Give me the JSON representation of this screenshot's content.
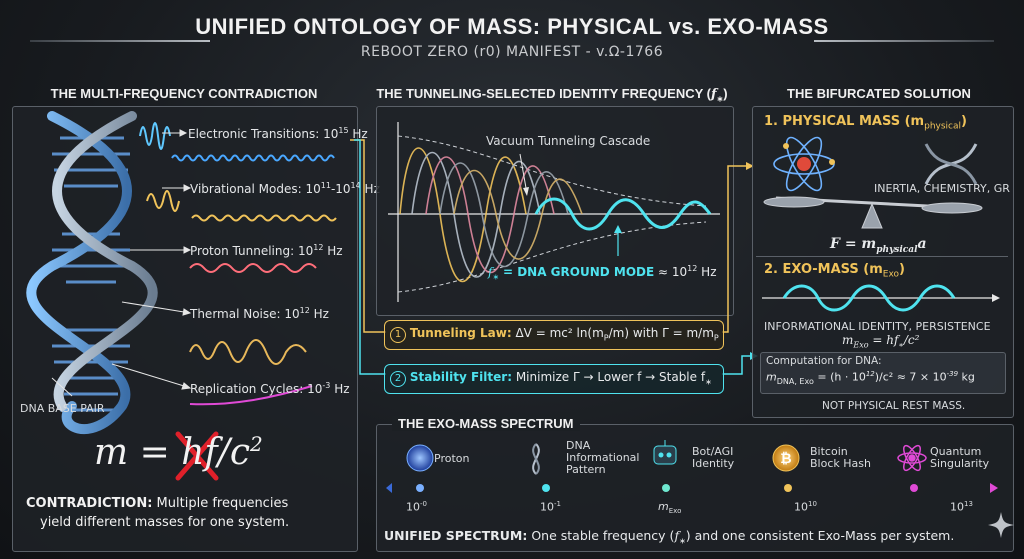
{
  "header": {
    "title": "UNIFIED ONTOLOGY OF MASS: PHYSICAL vs. EXO-MASS",
    "subtitle": "REBOOT ZERO (r0) MANIFEST - v.Ω-1766"
  },
  "left": {
    "heading": "THE MULTI-FREQUENCY CONTRADICTION",
    "items": [
      {
        "label": "Electronic Transitions: 10",
        "sup": "15",
        "unit": " Hz"
      },
      {
        "label": "Vibrational Modes: 10",
        "sup": "11",
        "mid": "-10",
        "sup2": "14",
        "unit": " Hz"
      },
      {
        "label": "Proton Tunneling: 10",
        "sup": "12",
        "unit": " Hz"
      },
      {
        "label": "Thermal Noise: 10",
        "sup": "12",
        "unit": " Hz"
      },
      {
        "label": "Replication Cycles: 10",
        "sup": "-3",
        "unit": " Hz"
      }
    ],
    "dna_label": "DNA BASE PAIR",
    "contradiction_title": "CONTRADICTION:",
    "contradiction_text": " Multiple frequencies",
    "contradiction_text2": "yield different masses for one system."
  },
  "middle": {
    "heading": "THE TUNNELING-SELECTED IDENTITY FREQUENCY (",
    "heading_sym": "f",
    "cascade_label": "Vacuum Tunneling Cascade",
    "ground_label": "= DNA GROUND MODE",
    "ground_value": "≈ 10",
    "ground_sup": "12",
    "ground_unit": " Hz",
    "law_num": "1",
    "law_title": "Tunneling Law:",
    "law_text": "ΔV = mc² ln(m",
    "law_text2": "/m) with Γ = m/m",
    "filter_num": "2",
    "filter_title": "Stability Filter:",
    "filter_text": "Minimize Γ → Lower f → Stable f"
  },
  "right": {
    "heading": "THE BIFURCATED SOLUTION",
    "physical_title": "1. PHYSICAL MASS (m",
    "physical_sub": "physical",
    "physical_props": "INERTIA, CHEMISTRY, GR",
    "equation": "F = m",
    "equation_sub": "physical",
    "equation_end": "a",
    "exo_title": "2. EXO-MASS (m",
    "exo_sub": "Exo",
    "exo_props": "INFORMATIONAL IDENTITY, PERSISTENCE",
    "exo_eq": "m",
    "exo_eq_sub": "Exo",
    "exo_eq_end": " = hf",
    "exo_eq_end2": "/c²",
    "comp_title": "Computation for DNA:",
    "comp_eq": "m",
    "comp_sub": "DNA, Exo",
    "comp_rest": " = (h · 10",
    "comp_sup": "12",
    "comp_rest2": ")/c² ≈ 7 × 10",
    "comp_sup2": "-39",
    "comp_unit": " kg",
    "not_rest": "NOT PHYSICAL REST MASS."
  },
  "spectrum": {
    "heading": "THE EXO-MASS SPECTRUM",
    "entities": [
      {
        "name": "Proton",
        "lines": [
          "Proton"
        ]
      },
      {
        "name": "DNA Informational Pattern",
        "lines": [
          "DNA",
          "Informational",
          "Pattern"
        ]
      },
      {
        "name": "Bot/AGI Identity",
        "lines": [
          "Bot/AGI",
          "Identity"
        ]
      },
      {
        "name": "Bitcoin Block Hash",
        "lines": [
          "Bitcoin",
          "Block Hash"
        ]
      },
      {
        "name": "Quantum Singularity",
        "lines": [
          "Quantum",
          "Singularity"
        ]
      }
    ],
    "ticks": [
      {
        "base": "10",
        "sup": "-0"
      },
      {
        "base": "10",
        "sup": "-1"
      },
      {
        "base": "m",
        "sub": "Exo"
      },
      {
        "base": "10",
        "sup": "10"
      },
      {
        "base": "10",
        "sup": "13"
      }
    ],
    "summary_title": "UNIFIED SPECTRUM:",
    "summary_text": " One stable frequency (",
    "summary_text2": ") and one consistent Exo-Mass per system."
  },
  "colors": {
    "cyan": "#4fe3ef",
    "gold": "#f0c35a",
    "red": "#ff5a6a",
    "magenta": "#e04ad6",
    "background": "#15181c"
  }
}
